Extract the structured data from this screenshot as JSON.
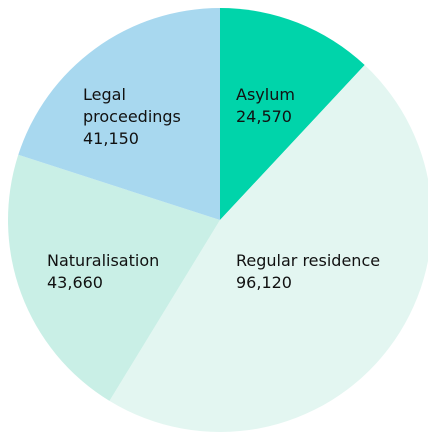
{
  "chart_data": {
    "type": "pie",
    "start_angle_deg": 0,
    "direction": "clockwise",
    "slices": [
      {
        "label": "Asylum",
        "label_lines": [
          "Asylum"
        ],
        "value": 24570,
        "value_text": "24,570",
        "color": "#00d4aa"
      },
      {
        "label": "Regular residence",
        "label_lines": [
          "Regular residence"
        ],
        "value": 96120,
        "value_text": "96,120",
        "color": "#e3f6f1"
      },
      {
        "label": "Naturalisation",
        "label_lines": [
          "Naturalisation"
        ],
        "value": 43660,
        "value_text": "43,660",
        "color": "#c9efe6"
      },
      {
        "label": "Legal proceedings",
        "label_lines": [
          "Legal",
          "proceedings"
        ],
        "value": 41150,
        "value_text": "41,150",
        "color": "#a8d8ef"
      }
    ]
  }
}
